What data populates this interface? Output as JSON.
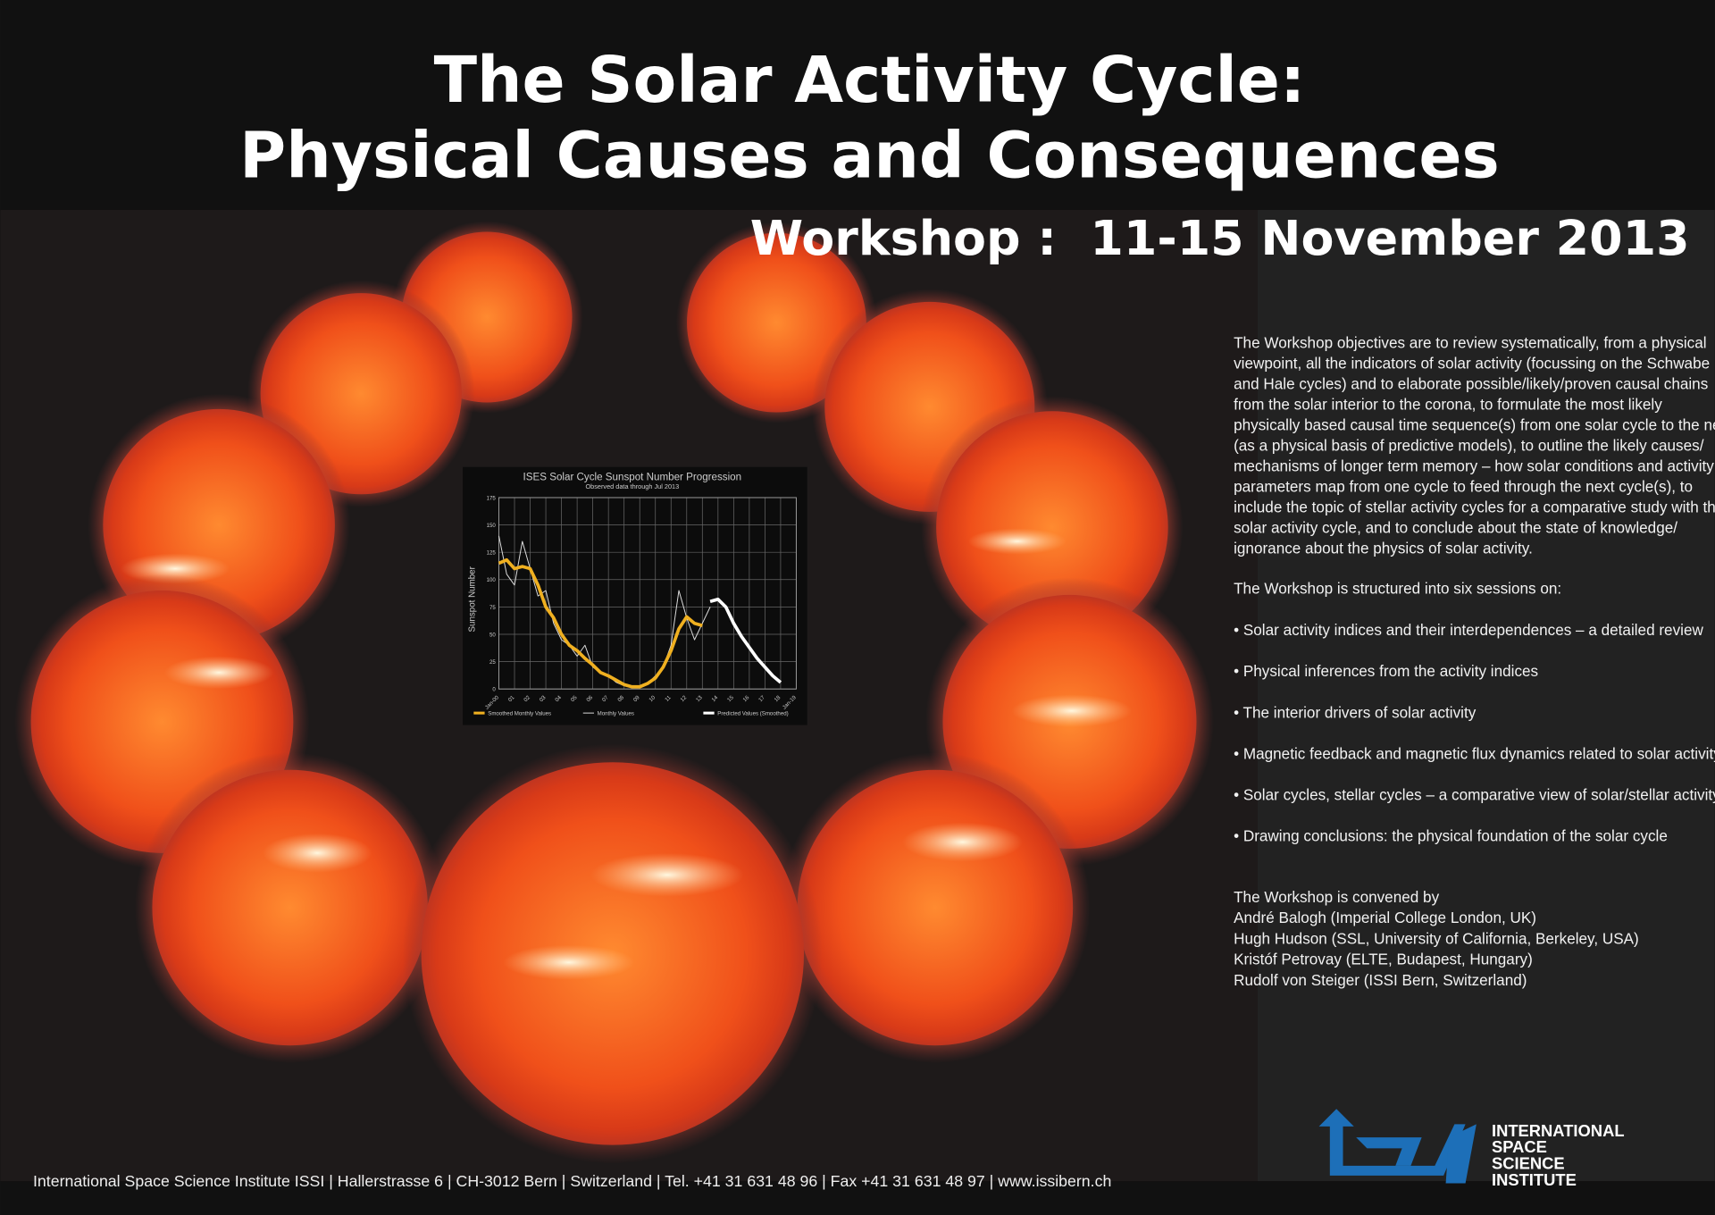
{
  "header": {
    "title": [
      "The Solar Activity Cycle:",
      "Physical Causes and Consequences"
    ],
    "subtitle": "Workshop :  11-15 November 2013"
  },
  "objectives": [
    "The Workshop objectives are to review systematically, from a physical",
    "viewpoint, all the indicators of solar activity (focussing on the Schwabe",
    "and Hale cycles) and to elaborate possible/likely/proven causal chains",
    "from the solar interior to the corona, to formulate the most likely",
    "physically based causal time sequence(s) from one solar cycle to the next",
    "(as a physical basis of predictive models), to outline the likely causes/",
    "mechanisms of longer term memory – how solar conditions and activity",
    "parameters map from one cycle to feed through the next cycle(s), to",
    "include the topic of stellar activity cycles for a comparative study with the",
    "solar activity cycle, and to conclude about the state of knowledge/",
    "ignorance about the physics of solar activity."
  ],
  "sessions_intro": "The Workshop is structured into six sessions on:",
  "sessions": [
    "• Solar activity indices and their interdependences – a detailed review",
    "• Physical inferences from the activity indices",
    "• The interior drivers of solar activity",
    "• Magnetic feedback and magnetic flux dynamics related to solar activity",
    "• Solar cycles, stellar cycles – a comparative view of solar/stellar activity",
    "• Drawing conclusions: the physical foundation of the solar cycle"
  ],
  "conveners": {
    "intro": "The Workshop is convened by",
    "names": [
      "André Balogh (Imperial College London, UK)",
      "Hugh Hudson (SSL, University of California, Berkeley, USA)",
      "Kristóf Petrovay (ELTE, Budapest, Hungary)",
      "Rudolf von Steiger (ISSI Bern, Switzerland)"
    ]
  },
  "footer": "International Space Science Institute ISSI | Hallerstrasse 6 | CH-3012 Bern | Switzerland | Tel. +41 31 631 48 96 | Fax +41 31 631 48 97 | www.issibern.ch",
  "logo": {
    "text": [
      "INTERNATIONAL",
      "SPACE",
      "SCIENCE",
      "INSTITUTE"
    ]
  },
  "chart_data": {
    "type": "line",
    "title": "ISES Solar Cycle Sunspot Number Progression",
    "subtitle": "Observed data through Jul 2013",
    "y_label": "Sunspot Number",
    "xlim": [
      0,
      19
    ],
    "xticks": [
      {
        "value": 0,
        "label": "Jan-00"
      },
      {
        "value": 1,
        "label": "01"
      },
      {
        "value": 2,
        "label": "02"
      },
      {
        "value": 3,
        "label": "03"
      },
      {
        "value": 4,
        "label": "04"
      },
      {
        "value": 5,
        "label": "05"
      },
      {
        "value": 6,
        "label": "06"
      },
      {
        "value": 7,
        "label": "07"
      },
      {
        "value": 8,
        "label": "08"
      },
      {
        "value": 9,
        "label": "09"
      },
      {
        "value": 10,
        "label": "10"
      },
      {
        "value": 11,
        "label": "11"
      },
      {
        "value": 12,
        "label": "12"
      },
      {
        "value": 13,
        "label": "13"
      },
      {
        "value": 14,
        "label": "14"
      },
      {
        "value": 15,
        "label": "15"
      },
      {
        "value": 16,
        "label": "16"
      },
      {
        "value": 17,
        "label": "17"
      },
      {
        "value": 18,
        "label": "18"
      },
      {
        "value": 19,
        "label": "Jan-19"
      }
    ],
    "ylim": [
      0,
      175
    ],
    "yticks": [
      0,
      25,
      50,
      75,
      100,
      125,
      150,
      175
    ],
    "grid": true,
    "series": [
      {
        "name": "Monthly Values",
        "color": "#dddddd",
        "width": 0.8,
        "x": [
          0,
          0.5,
          1,
          1.5,
          2,
          2.5,
          3,
          3.5,
          4,
          4.5,
          5,
          5.5,
          6,
          6.5,
          7,
          7.5,
          8,
          8.5,
          9,
          9.5,
          10,
          10.5,
          11,
          11.5,
          12,
          12.5,
          13,
          13.5
        ],
        "values": [
          140,
          105,
          95,
          135,
          110,
          85,
          90,
          60,
          45,
          40,
          30,
          40,
          20,
          15,
          12,
          6,
          3,
          2,
          1,
          5,
          12,
          20,
          40,
          90,
          65,
          45,
          60,
          75
        ]
      },
      {
        "name": "Smoothed Monthly Values",
        "color": "#f0b020",
        "width": 3,
        "x": [
          0,
          0.5,
          1,
          1.5,
          2,
          2.5,
          3,
          3.5,
          4,
          4.5,
          5,
          5.5,
          6,
          6.5,
          7,
          7.5,
          8,
          8.5,
          9,
          9.5,
          10,
          10.5,
          11,
          11.5,
          12,
          12.5,
          13
        ],
        "values": [
          115,
          118,
          110,
          112,
          110,
          95,
          75,
          65,
          50,
          40,
          35,
          28,
          22,
          15,
          12,
          8,
          4,
          2,
          2,
          5,
          10,
          20,
          35,
          55,
          66,
          60,
          58
        ]
      },
      {
        "name": "Predicted Values (Smoothed)",
        "color": "#ffffff",
        "width": 3,
        "x": [
          13.5,
          14,
          14.5,
          15,
          15.5,
          16,
          16.5,
          17,
          17.5,
          18
        ],
        "values": [
          80,
          82,
          75,
          60,
          48,
          38,
          28,
          20,
          12,
          6
        ]
      }
    ]
  }
}
